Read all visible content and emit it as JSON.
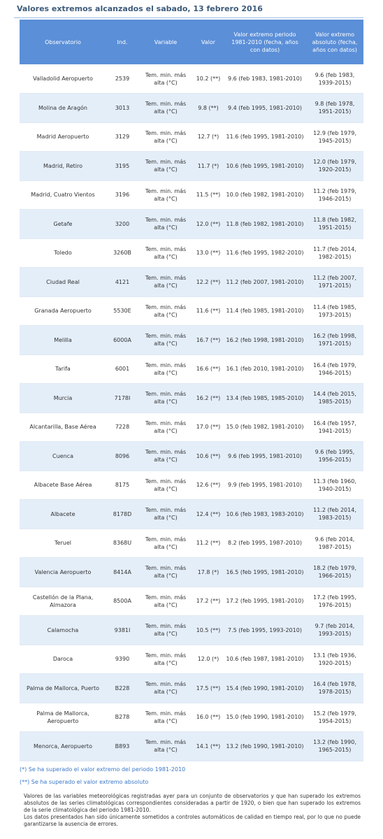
{
  "title": "Valores extremos alcanzados el sabado, 13 febrero 2016",
  "table": {
    "header": [
      "Observatorio",
      "Ind.",
      "Variable",
      "Valor",
      "Valor extremo periodo 1981-2010 (fecha, años con datos)",
      "Valor extremo absoluto (fecha, años con datos)"
    ],
    "rows": [
      [
        "Valladolid Aeropuerto",
        "2539",
        "Tem. min. más alta (°C)",
        "10.2 (**)",
        "9.6 (feb 1983, 1981-2010)",
        "9.6 (feb 1983, 1939-2015)"
      ],
      [
        "Molina de Aragón",
        "3013",
        "Tem. min. más alta (°C)",
        "9.8 (**)",
        "9.4 (feb 1995, 1981-2010)",
        "9.8 (feb 1978, 1951-2015)"
      ],
      [
        "Madrid Aeropuerto",
        "3129",
        "Tem. min. más alta (°C)",
        "12.7 (*)",
        "11.6 (feb 1995, 1981-2010)",
        "12.9 (feb 1979, 1945-2015)"
      ],
      [
        "Madrid, Retiro",
        "3195",
        "Tem. min. más alta (°C)",
        "11.7 (*)",
        "10.6 (feb 1995, 1981-2010)",
        "12.0 (feb 1979, 1920-2015)"
      ],
      [
        "Madrid, Cuatro Vientos",
        "3196",
        "Tem. min. más alta (°C)",
        "11.5 (**)",
        "10.0 (feb 1982, 1981-2010)",
        "11.2 (feb 1979, 1946-2015)"
      ],
      [
        "Getafe",
        "3200",
        "Tem. min. más alta (°C)",
        "12.0 (**)",
        "11.8 (feb 1982, 1981-2010)",
        "11.8 (feb 1982, 1951-2015)"
      ],
      [
        "Toledo",
        "3260B",
        "Tem. min. más alta (°C)",
        "13.0 (**)",
        "11.6 (feb 1995, 1982-2010)",
        "11.7 (feb 2014, 1982-2015)"
      ],
      [
        "Ciudad Real",
        "4121",
        "Tem. min. más alta (°C)",
        "12.2 (**)",
        "11.2 (feb 2007, 1981-2010)",
        "11.2 (feb 2007, 1971-2015)"
      ],
      [
        "Granada Aeropuerto",
        "5530E",
        "Tem. min. más alta (°C)",
        "11.6 (**)",
        "11.4 (feb 1985, 1981-2010)",
        "11.4 (feb 1985, 1973-2015)"
      ],
      [
        "Melilla",
        "6000A",
        "Tem. min. más alta (°C)",
        "16.7 (**)",
        "16.2 (feb 1998, 1981-2010)",
        "16.2 (feb 1998, 1971-2015)"
      ],
      [
        "Tarifa",
        "6001",
        "Tem. min. más alta (°C)",
        "16.6 (**)",
        "16.1 (feb 2010, 1981-2010)",
        "16.4 (feb 1979, 1946-2015)"
      ],
      [
        "Murcia",
        "7178I",
        "Tem. min. más alta (°C)",
        "16.2 (**)",
        "13.4 (feb 1985, 1985-2010)",
        "14.4 (feb 2015, 1985-2015)"
      ],
      [
        "Alcantarilla, Base Aérea",
        "7228",
        "Tem. min. más alta (°C)",
        "17.0 (**)",
        "15.0 (feb 1982, 1981-2010)",
        "16.4 (feb 1957, 1941-2015)"
      ],
      [
        "Cuenca",
        "8096",
        "Tem. min. más alta (°C)",
        "10.6 (**)",
        "9.6 (feb 1995, 1981-2010)",
        "9.6 (feb 1995, 1956-2015)"
      ],
      [
        "Albacete Base Aérea",
        "8175",
        "Tem. min. más alta (°C)",
        "12.6 (**)",
        "9.9 (feb 1995, 1981-2010)",
        "11.3 (feb 1960, 1940-2015)"
      ],
      [
        "Albacete",
        "8178D",
        "Tem. min. más alta (°C)",
        "12.4 (**)",
        "10.6 (feb 1983, 1983-2010)",
        "11.2 (feb 2014, 1983-2015)"
      ],
      [
        "Teruel",
        "8368U",
        "Tem. min. más alta (°C)",
        "11.2 (**)",
        "8.2 (feb 1995, 1987-2010)",
        "9.6 (feb 2014, 1987-2015)"
      ],
      [
        "Valencia Aeropuerto",
        "8414A",
        "Tem. min. más alta (°C)",
        "17.8 (*)",
        "16.5 (feb 1995, 1981-2010)",
        "18.2 (feb 1979, 1966-2015)"
      ],
      [
        "Castellón de la Plana, Almazora",
        "8500A",
        "Tem. min. más alta (°C)",
        "17.2 (**)",
        "17.2 (feb 1995, 1981-2010)",
        "17.2 (feb 1995, 1976-2015)"
      ],
      [
        "Calamocha",
        "9381I",
        "Tem. min. más alta (°C)",
        "10.5 (**)",
        "7.5 (feb 1995, 1993-2010)",
        "9.7 (feb 2014, 1993-2015)"
      ],
      [
        "Daroca",
        "9390",
        "Tem. min. más alta (°C)",
        "12.0 (*)",
        "10.6 (feb 1987, 1981-2010)",
        "13.1 (feb 1936, 1920-2015)"
      ],
      [
        "Palma de Mallorca, Puerto",
        "B228",
        "Tem. min. más alta (°C)",
        "17.5 (**)",
        "15.4 (feb 1990, 1981-2010)",
        "16.4 (feb 1978, 1978-2015)"
      ],
      [
        "Palma de Mallorca, Aeropuerto",
        "B278",
        "Tem. min. más alta (°C)",
        "16.0 (**)",
        "15.0 (feb 1990, 1981-2010)",
        "15.2 (feb 1979, 1954-2015)"
      ],
      [
        "Menorca, Aeropuerto",
        "B893",
        "Tem. min. más alta (°C)",
        "14.1 (**)",
        "13.2 (feb 1990, 1981-2010)",
        "13.2 (feb 1990, 1965-2015)"
      ]
    ]
  },
  "notes": [
    "(*) Se ha superado el valor extremo del periodo 1981-2010",
    "(**) Se ha superado el valor extremo absoluto"
  ],
  "footer": [
    "Valores de las variables meteorológicas registradas ayer para un conjunto de observatorios y que han superado los extremos absolutos de las series climatológicas correspondientes consideradas a partir de 1920, o bien que han superado los extremos de la serie climatológica del periodo 1981-2010.",
    "Los datos presentados han sido únicamente sometidos a controles automáticos de calidad en tiempo real, por lo que no puede garantizarse la ausencia de errores."
  ]
}
